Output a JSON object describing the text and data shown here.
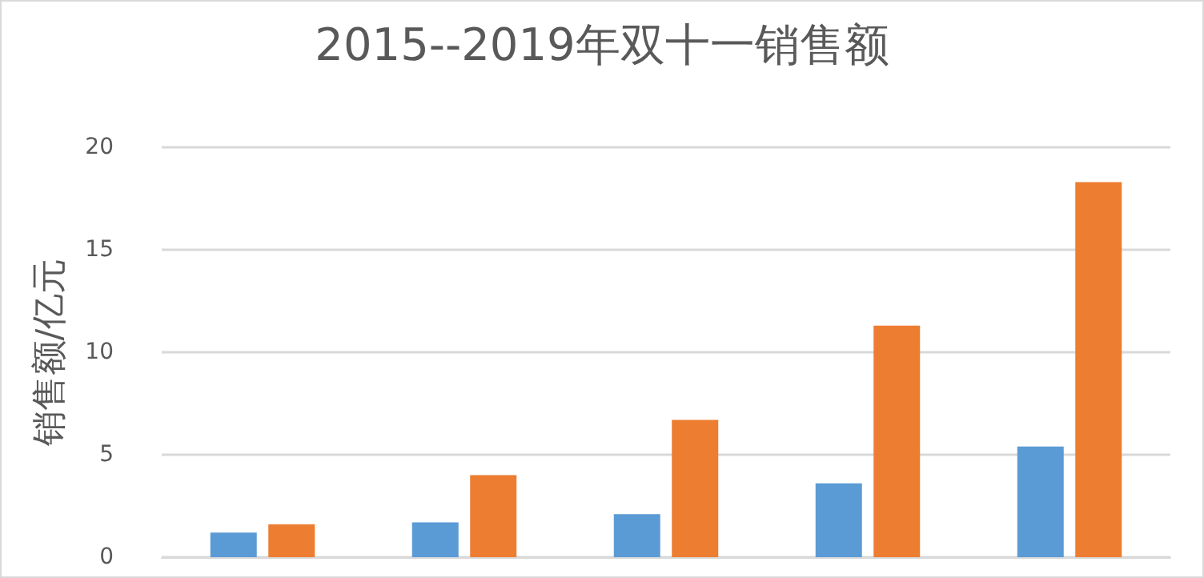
{
  "chart_data": {
    "type": "bar",
    "title": "2015--2019年双十一销售额",
    "ylabel": "销售额/亿元",
    "categories": [
      null,
      null,
      null,
      null,
      null
    ],
    "series": [
      {
        "color": "#5b9bd5",
        "values": [
          1.2,
          1.7,
          2.1,
          3.6,
          5.4
        ]
      },
      {
        "color": "#ed7d31",
        "values": [
          1.6,
          4.0,
          6.7,
          11.3,
          18.3
        ]
      }
    ],
    "ylim": [
      0,
      20
    ],
    "yticks": [
      0,
      5,
      10,
      15,
      20
    ],
    "grid": "y"
  }
}
